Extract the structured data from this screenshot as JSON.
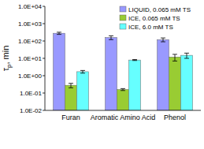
{
  "chart_data": {
    "type": "bar",
    "y_label": "τp, min",
    "categories": [
      "Furan",
      "Aromatic Amino Acid",
      "Phenol"
    ],
    "series": [
      {
        "name": "LIQUID, 0.065 mM TS",
        "color": "#9999ff",
        "values": [
          280,
          160,
          120
        ],
        "errors": [
          40,
          40,
          30
        ]
      },
      {
        "name": "ICE, 0.065 mM TS",
        "color": "#99cc33",
        "values": [
          0.28,
          0.16,
          12
        ],
        "errors": [
          0.08,
          0.02,
          5
        ]
      },
      {
        "name": "ICE, 6.0 mM TS",
        "color": "#66ffff",
        "values": [
          1.7,
          8,
          15
        ],
        "errors": [
          0.3,
          0.5,
          5
        ]
      }
    ],
    "ylim": [
      0.01,
      10000
    ],
    "yticks": [
      {
        "value": 0.01,
        "label": "1.0E-02"
      },
      {
        "value": 0.1,
        "label": "1.0E-01"
      },
      {
        "value": 1,
        "label": "1.0E+00"
      },
      {
        "value": 10,
        "label": "1.0E+01"
      },
      {
        "value": 100,
        "label": "1.0E+02"
      },
      {
        "value": 1000,
        "label": "1.0E+03"
      },
      {
        "value": 10000,
        "label": "1.0E+04"
      }
    ],
    "log": "y",
    "grid": false,
    "legend": "top-right"
  }
}
